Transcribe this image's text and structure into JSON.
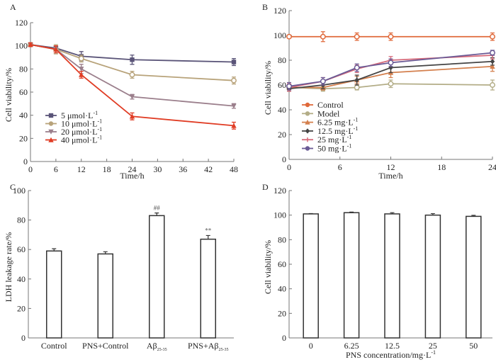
{
  "chart_data": [
    {
      "panel": "A",
      "type": "line",
      "title": "",
      "xlabel": "Time/h",
      "ylabel": "Cell viability/%",
      "xlim": [
        0,
        48
      ],
      "ylim": [
        0,
        120
      ],
      "xticks": [
        0,
        6,
        12,
        18,
        24,
        30,
        36,
        42,
        48
      ],
      "yticks": [
        0,
        20,
        40,
        60,
        80,
        100,
        120
      ],
      "legend_position": "bottom-left",
      "x": [
        0,
        6,
        12,
        24,
        48
      ],
      "series": [
        {
          "name": "5 μmol·L",
          "sup": "-1",
          "color": "#5a5478",
          "marker": "square",
          "values": [
            101,
            98,
            91,
            88,
            86
          ],
          "errors": [
            1.5,
            2,
            4,
            4,
            3
          ]
        },
        {
          "name": "10 μmol·L",
          "sup": "-1",
          "color": "#b8a37a",
          "marker": "circle",
          "values": [
            101,
            97,
            89,
            75,
            70
          ],
          "errors": [
            1.5,
            4,
            3,
            3,
            3
          ]
        },
        {
          "name": "20 μmol·L",
          "sup": "-1",
          "color": "#9b7f8c",
          "marker": "triangle-down",
          "values": [
            101,
            97,
            80,
            56,
            48
          ],
          "errors": [
            1.5,
            3,
            4,
            2,
            2
          ]
        },
        {
          "name": "40 μmol·L",
          "sup": "-1",
          "color": "#e03c24",
          "marker": "triangle-up",
          "values": [
            101,
            97,
            75,
            39,
            31
          ],
          "errors": [
            1.5,
            3,
            3,
            3,
            3
          ]
        }
      ]
    },
    {
      "panel": "B",
      "type": "line",
      "title": "",
      "xlabel": "Time/h",
      "ylabel": "Cell viability/%",
      "xlim": [
        0,
        24
      ],
      "ylim": [
        0,
        120
      ],
      "xticks": [
        0,
        6,
        12,
        18,
        24
      ],
      "yticks": [
        0,
        20,
        40,
        60,
        80,
        100,
        120
      ],
      "legend_position": "bottom-left",
      "x": [
        0,
        4,
        8,
        12,
        24
      ],
      "series": [
        {
          "name": "Control",
          "sup": "",
          "color": "#e0693a",
          "marker": "circle",
          "values": [
            99,
            99,
            99,
            99,
            99
          ],
          "errors": [
            1,
            4,
            3,
            3,
            3
          ]
        },
        {
          "name": "Model",
          "sup": "",
          "color": "#b3ad87",
          "marker": "circle",
          "values": [
            58,
            57,
            58,
            61,
            60
          ],
          "errors": [
            2,
            2,
            2,
            3,
            4
          ]
        },
        {
          "name": "6.25 mg·L",
          "sup": "-1",
          "color": "#d4804e",
          "marker": "triangle-up",
          "values": [
            58,
            58,
            64,
            70,
            75
          ],
          "errors": [
            3,
            2,
            3,
            4,
            4
          ]
        },
        {
          "name": "12.5 mg·L",
          "sup": "-1",
          "color": "#444444",
          "marker": "diamond",
          "values": [
            57,
            60,
            64,
            74,
            79
          ],
          "errors": [
            2,
            3,
            4,
            4,
            3
          ]
        },
        {
          "name": "25 mg·L",
          "sup": "-1",
          "color": "#d66a7a",
          "marker": "plus",
          "values": [
            58,
            63,
            73,
            80,
            84
          ],
          "errors": [
            3,
            3,
            3,
            3,
            3
          ]
        },
        {
          "name": "50 mg·L",
          "sup": "-1",
          "color": "#6a5a95",
          "marker": "circle",
          "values": [
            59,
            63,
            74,
            78,
            86
          ],
          "errors": [
            3,
            3,
            3,
            3,
            2
          ]
        }
      ]
    },
    {
      "panel": "C",
      "type": "bar",
      "title": "",
      "xlabel": "",
      "ylabel": "LDH leakage rate/%",
      "ylim": [
        0,
        100
      ],
      "yticks": [
        0,
        20,
        40,
        60,
        80,
        100
      ],
      "categories": [
        {
          "main": "Control",
          "sub": ""
        },
        {
          "main": "PNS+Control",
          "sub": ""
        },
        {
          "main": "Aβ",
          "sub": "25-35"
        },
        {
          "main": "PNS+Aβ",
          "sub": "25-35"
        }
      ],
      "values": [
        59,
        57,
        83,
        67
      ],
      "errors": [
        1.5,
        1.5,
        1.8,
        2.5
      ],
      "annotations": [
        "",
        "",
        "##",
        "**"
      ]
    },
    {
      "panel": "D",
      "type": "bar",
      "title": "",
      "xlabel": "PNS concentration/mg·L",
      "xlabel_sup": "-1",
      "ylabel": "Cell viability/%",
      "ylim": [
        0,
        120
      ],
      "yticks": [
        0,
        20,
        40,
        60,
        80,
        100,
        120
      ],
      "categories": [
        "0",
        "6.25",
        "12.5",
        "25",
        "50"
      ],
      "values": [
        101,
        102,
        101,
        100,
        99
      ],
      "errors": [
        0.3,
        0.5,
        1.0,
        1.2,
        0.8
      ]
    }
  ]
}
